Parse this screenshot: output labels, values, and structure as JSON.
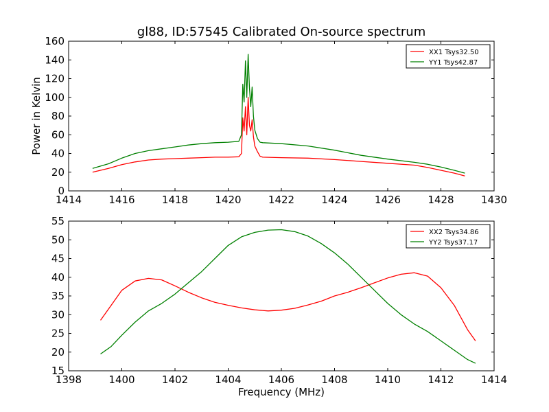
{
  "chart_data": [
    {
      "type": "line",
      "title": "gl88, ID:57545 Calibrated On-source spectrum",
      "xlabel": "",
      "ylabel": "Power in Kelvin",
      "xlim": [
        1414,
        1430
      ],
      "ylim": [
        0,
        160
      ],
      "xticks": [
        1414,
        1416,
        1418,
        1420,
        1422,
        1424,
        1426,
        1428,
        1430
      ],
      "yticks": [
        0,
        20,
        40,
        60,
        80,
        100,
        120,
        140,
        160
      ],
      "grid": false,
      "legend_position": "top-right",
      "series": [
        {
          "name": "XX1 Tsys32.50",
          "color": "#ff0000",
          "points": [
            [
              1414.9,
              20
            ],
            [
              1415.5,
              24
            ],
            [
              1416,
              28
            ],
            [
              1416.5,
              31
            ],
            [
              1417,
              33
            ],
            [
              1417.5,
              34
            ],
            [
              1418,
              34.5
            ],
            [
              1418.5,
              35
            ],
            [
              1419,
              35.5
            ],
            [
              1419.5,
              36
            ],
            [
              1420,
              36
            ],
            [
              1420.4,
              36.5
            ],
            [
              1420.5,
              40
            ],
            [
              1420.55,
              78
            ],
            [
              1420.6,
              64
            ],
            [
              1420.65,
              90
            ],
            [
              1420.7,
              60
            ],
            [
              1420.75,
              100
            ],
            [
              1420.8,
              70
            ],
            [
              1420.85,
              64
            ],
            [
              1420.9,
              76
            ],
            [
              1420.95,
              58
            ],
            [
              1421.0,
              48
            ],
            [
              1421.1,
              42
            ],
            [
              1421.2,
              37
            ],
            [
              1421.3,
              36
            ],
            [
              1422,
              35.5
            ],
            [
              1423,
              35
            ],
            [
              1424,
              33.5
            ],
            [
              1425,
              31.5
            ],
            [
              1426,
              29.5
            ],
            [
              1427,
              27.5
            ],
            [
              1427.5,
              25
            ],
            [
              1428,
              22
            ],
            [
              1428.5,
              19
            ],
            [
              1428.9,
              16
            ]
          ]
        },
        {
          "name": "YY1 Tsys42.87",
          "color": "#008000",
          "points": [
            [
              1414.9,
              24
            ],
            [
              1415.5,
              29
            ],
            [
              1416,
              35
            ],
            [
              1416.5,
              40
            ],
            [
              1417,
              43
            ],
            [
              1417.5,
              45
            ],
            [
              1418,
              47
            ],
            [
              1418.5,
              49
            ],
            [
              1419,
              50.5
            ],
            [
              1419.5,
              51.5
            ],
            [
              1420,
              52
            ],
            [
              1420.4,
              53
            ],
            [
              1420.5,
              60
            ],
            [
              1420.55,
              114
            ],
            [
              1420.6,
              95
            ],
            [
              1420.65,
              139
            ],
            [
              1420.7,
              100
            ],
            [
              1420.75,
              146
            ],
            [
              1420.8,
              110
            ],
            [
              1420.85,
              90
            ],
            [
              1420.9,
              111
            ],
            [
              1420.95,
              80
            ],
            [
              1421.0,
              65
            ],
            [
              1421.1,
              56
            ],
            [
              1421.2,
              52
            ],
            [
              1421.3,
              51.5
            ],
            [
              1422,
              50.5
            ],
            [
              1423,
              48
            ],
            [
              1424,
              43.5
            ],
            [
              1425,
              38
            ],
            [
              1426,
              34
            ],
            [
              1427,
              30.5
            ],
            [
              1427.5,
              28.5
            ],
            [
              1428,
              25.5
            ],
            [
              1428.5,
              22
            ],
            [
              1428.9,
              19
            ]
          ]
        }
      ]
    },
    {
      "type": "line",
      "title": "",
      "xlabel": "Frequency (MHz)",
      "ylabel": "",
      "xlim": [
        1398,
        1414
      ],
      "ylim": [
        15,
        55
      ],
      "xticks": [
        1398,
        1400,
        1402,
        1404,
        1406,
        1408,
        1410,
        1412,
        1414
      ],
      "yticks": [
        15,
        20,
        25,
        30,
        35,
        40,
        45,
        50,
        55
      ],
      "grid": false,
      "legend_position": "top-right",
      "series": [
        {
          "name": "XX2 Tsys34.86",
          "color": "#ff0000",
          "points": [
            [
              1399.2,
              28.5
            ],
            [
              1399.6,
              32.5
            ],
            [
              1400,
              36.5
            ],
            [
              1400.5,
              39
            ],
            [
              1401,
              39.7
            ],
            [
              1401.5,
              39.3
            ],
            [
              1402,
              37.7
            ],
            [
              1402.5,
              36
            ],
            [
              1403,
              34.5
            ],
            [
              1403.5,
              33.3
            ],
            [
              1404,
              32.5
            ],
            [
              1404.5,
              31.8
            ],
            [
              1405,
              31.3
            ],
            [
              1405.5,
              31
            ],
            [
              1406,
              31.2
            ],
            [
              1406.5,
              31.7
            ],
            [
              1407,
              32.6
            ],
            [
              1407.5,
              33.6
            ],
            [
              1408,
              35
            ],
            [
              1408.5,
              36
            ],
            [
              1409,
              37.2
            ],
            [
              1409.5,
              38.5
            ],
            [
              1410,
              39.8
            ],
            [
              1410.5,
              40.8
            ],
            [
              1411,
              41.2
            ],
            [
              1411.5,
              40.3
            ],
            [
              1412,
              37.2
            ],
            [
              1412.5,
              32.5
            ],
            [
              1413,
              26
            ],
            [
              1413.3,
              23
            ]
          ]
        },
        {
          "name": "YY2 Tsys37.17",
          "color": "#008000",
          "points": [
            [
              1399.2,
              19.5
            ],
            [
              1399.6,
              21.5
            ],
            [
              1400,
              24.5
            ],
            [
              1400.5,
              28
            ],
            [
              1401,
              31
            ],
            [
              1401.5,
              33
            ],
            [
              1402,
              35.5
            ],
            [
              1402.5,
              38.5
            ],
            [
              1403,
              41.5
            ],
            [
              1403.5,
              45
            ],
            [
              1404,
              48.5
            ],
            [
              1404.5,
              50.8
            ],
            [
              1405,
              52
            ],
            [
              1405.5,
              52.6
            ],
            [
              1406,
              52.7
            ],
            [
              1406.5,
              52.2
            ],
            [
              1407,
              51
            ],
            [
              1407.5,
              49
            ],
            [
              1408,
              46.5
            ],
            [
              1408.5,
              43.5
            ],
            [
              1409,
              40
            ],
            [
              1409.5,
              36.5
            ],
            [
              1410,
              33
            ],
            [
              1410.5,
              30
            ],
            [
              1411,
              27.5
            ],
            [
              1411.5,
              25.5
            ],
            [
              1412,
              23
            ],
            [
              1412.5,
              20.5
            ],
            [
              1413,
              18
            ],
            [
              1413.3,
              17
            ]
          ]
        }
      ]
    }
  ]
}
